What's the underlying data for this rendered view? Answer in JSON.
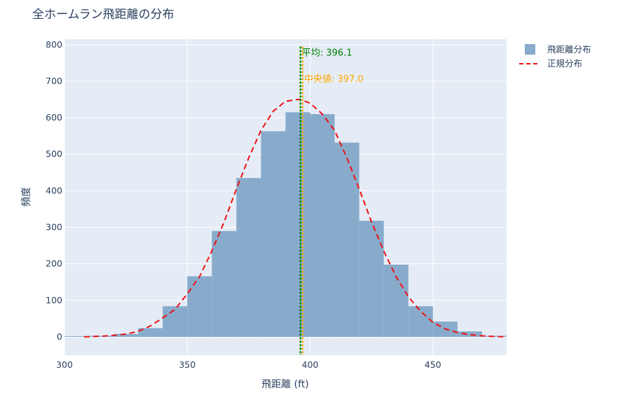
{
  "chart_data": {
    "type": "bar",
    "title": "全ホームラン飛距離の分布",
    "xlabel": "飛距離 (ft)",
    "ylabel": "頻度",
    "xlim": [
      300,
      480
    ],
    "ylim": [
      -50,
      815
    ],
    "x_ticks": [
      300,
      350,
      400,
      450
    ],
    "y_ticks": [
      0,
      100,
      200,
      300,
      400,
      500,
      600,
      700,
      800
    ],
    "grid": true,
    "legend_position": "top-right",
    "colors": {
      "plot_bg": "#e5ecf6",
      "histogram": "#88abcc",
      "normal_curve": "#ee1111",
      "mean_line": "#008000",
      "median_line": "#ffa500"
    },
    "series": [
      {
        "name": "飛距離分布",
        "type": "histogram",
        "bins": [
          {
            "x0": 300,
            "x1": 310,
            "value": 2
          },
          {
            "x0": 310,
            "x1": 320,
            "value": 3
          },
          {
            "x0": 320,
            "x1": 330,
            "value": 8
          },
          {
            "x0": 330,
            "x1": 340,
            "value": 24
          },
          {
            "x0": 340,
            "x1": 350,
            "value": 84
          },
          {
            "x0": 350,
            "x1": 360,
            "value": 166
          },
          {
            "x0": 360,
            "x1": 370,
            "value": 290
          },
          {
            "x0": 370,
            "x1": 380,
            "value": 435
          },
          {
            "x0": 380,
            "x1": 390,
            "value": 563
          },
          {
            "x0": 390,
            "x1": 400,
            "value": 615
          },
          {
            "x0": 400,
            "x1": 410,
            "value": 610
          },
          {
            "x0": 410,
            "x1": 420,
            "value": 532
          },
          {
            "x0": 420,
            "x1": 430,
            "value": 318
          },
          {
            "x0": 430,
            "x1": 440,
            "value": 198
          },
          {
            "x0": 440,
            "x1": 450,
            "value": 84
          },
          {
            "x0": 450,
            "x1": 460,
            "value": 42
          },
          {
            "x0": 460,
            "x1": 470,
            "value": 15
          },
          {
            "x0": 470,
            "x1": 480,
            "value": 3
          }
        ]
      },
      {
        "name": "正規分布",
        "type": "line",
        "style": "dashed",
        "x": [
          308,
          315,
          320,
          325,
          330,
          335,
          340,
          345,
          350,
          355,
          360,
          365,
          370,
          375,
          380,
          385,
          390,
          395,
          396,
          400,
          405,
          410,
          415,
          420,
          425,
          430,
          435,
          440,
          445,
          450,
          455,
          460,
          465,
          470,
          475,
          480
        ],
        "y": [
          0,
          2,
          4,
          8,
          15,
          30,
          52,
          75,
          118,
          165,
          235,
          315,
          405,
          490,
          565,
          618,
          645,
          650,
          650,
          640,
          610,
          565,
          490,
          405,
          315,
          235,
          165,
          110,
          70,
          40,
          22,
          12,
          6,
          3,
          1,
          0
        ]
      }
    ],
    "annotations": [
      {
        "id": "mean",
        "label": "平均: 396.1",
        "x": 396.1
      },
      {
        "id": "median",
        "label": "中央値: 397.0",
        "x": 397.0
      }
    ]
  }
}
